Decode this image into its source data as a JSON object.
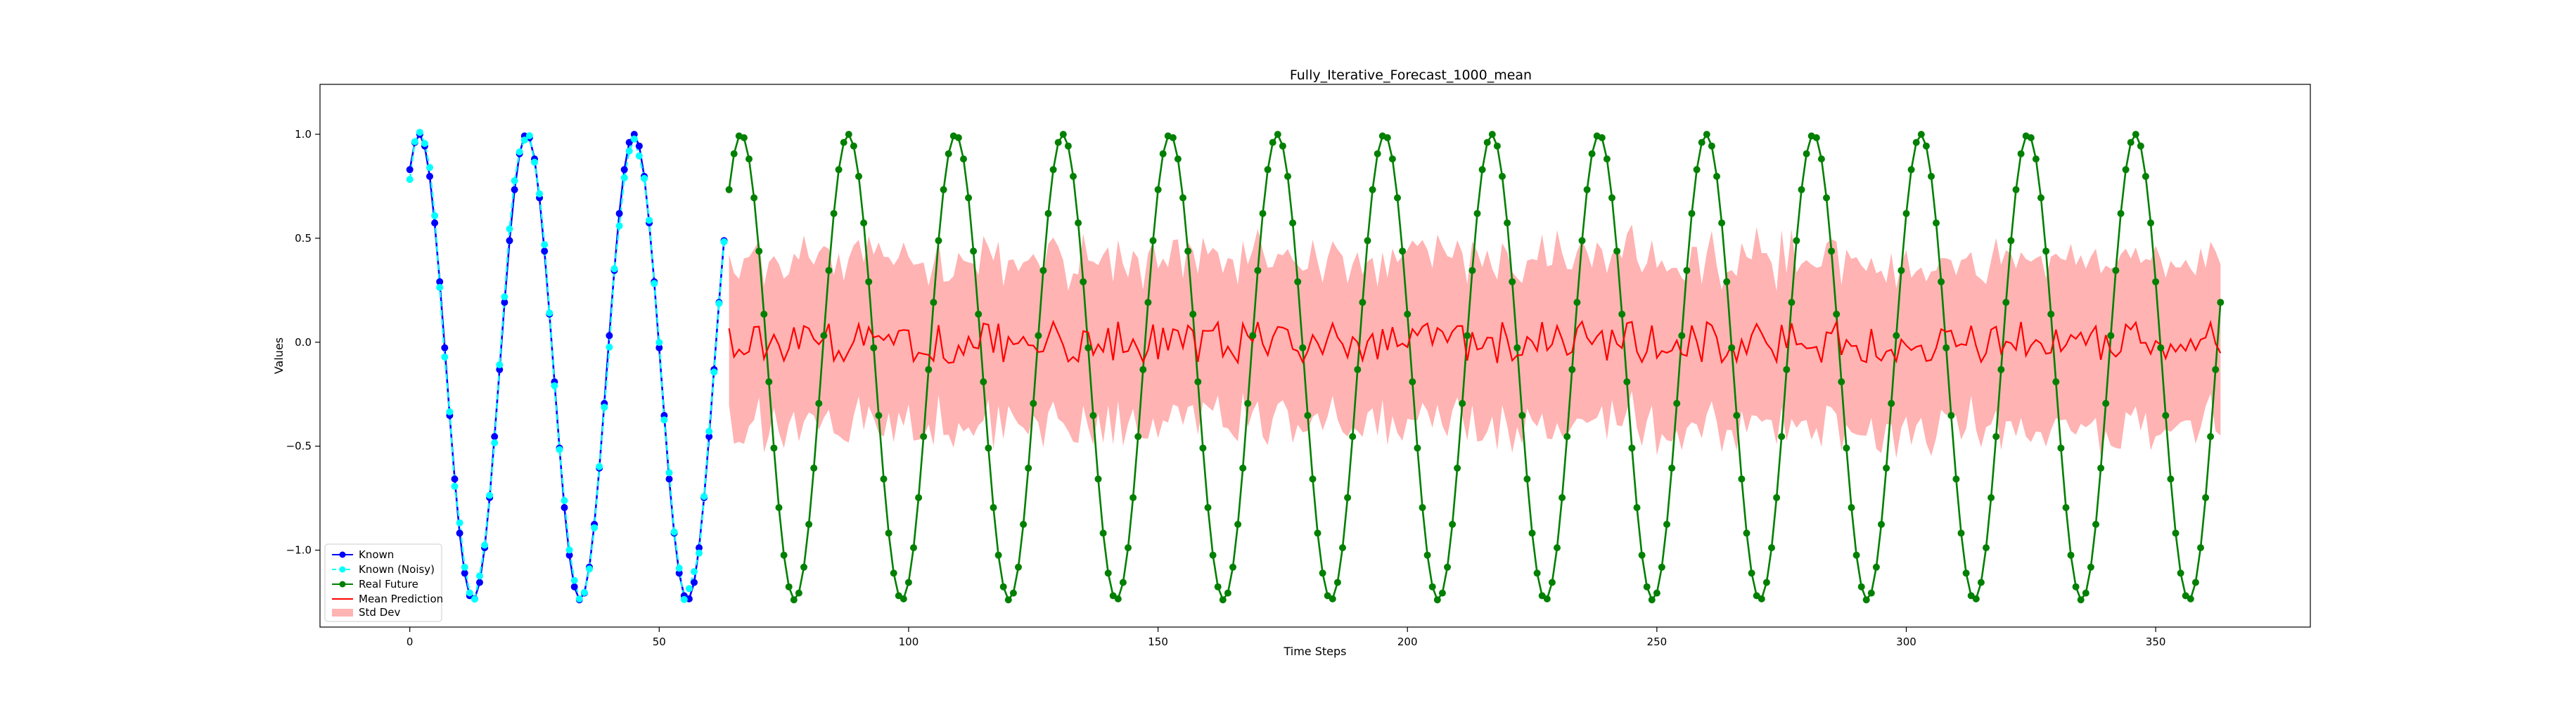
{
  "chart_data": {
    "type": "line",
    "title": "Fully_Iterative_Forecast_1000_mean",
    "xlabel": "Time Steps",
    "ylabel": "Values",
    "xlim": [
      -18,
      381
    ],
    "ylim": [
      -1.37,
      1.24
    ],
    "x_ticks": [
      0,
      50,
      100,
      150,
      200,
      250,
      300,
      350
    ],
    "y_ticks": [
      -1.0,
      -0.5,
      0.0,
      0.5,
      1.0
    ],
    "grid": false,
    "legend_position": "lower-left",
    "signal": {
      "period": 21.5,
      "amplitude": 1.12,
      "offset": -0.12,
      "phase_start_value": 0.83,
      "known_range": [
        0,
        63
      ],
      "future_range": [
        64,
        363
      ],
      "prediction_range": [
        64,
        363
      ]
    },
    "prediction_summary": {
      "mean_level": 0.0,
      "mean_fluctuation": 0.1,
      "std_band_halfwidth": 0.4
    },
    "series": [
      {
        "name": "Known",
        "color": "#0000ff",
        "marker": "circle",
        "line": "solid"
      },
      {
        "name": "Known (Noisy)",
        "color": "#00ffff",
        "marker": "circle",
        "line": "dashed"
      },
      {
        "name": "Real Future",
        "color": "#008000",
        "marker": "circle",
        "line": "solid"
      },
      {
        "name": "Mean Prediction",
        "color": "#ff0000",
        "marker": "none",
        "line": "solid"
      },
      {
        "name": "Std Dev",
        "color": "#ff9999",
        "marker": "none",
        "line": "band"
      }
    ]
  }
}
